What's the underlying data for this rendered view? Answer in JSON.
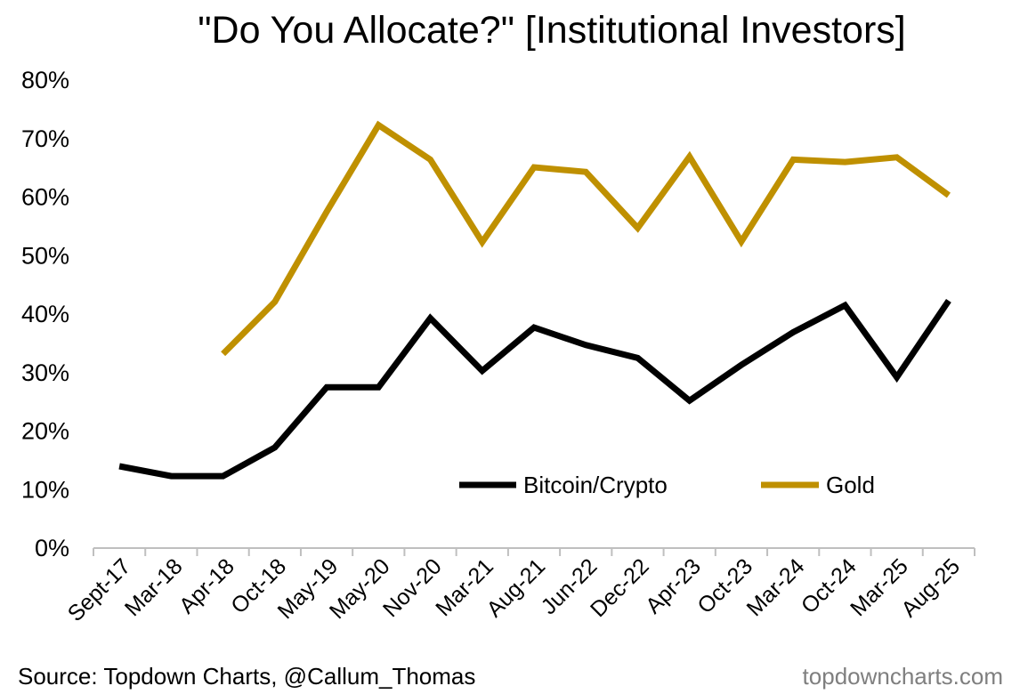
{
  "chart_data": {
    "type": "line",
    "title": "\"Do You Allocate?\" [Institutional Investors]",
    "categories": [
      "Sept-17",
      "Mar-18",
      "Apr-18",
      "Oct-18",
      "May-19",
      "May-20",
      "Nov-20",
      "Mar-21",
      "Aug-21",
      "Jun-22",
      "Dec-22",
      "Apr-23",
      "Oct-23",
      "Mar-24",
      "Oct-24",
      "Mar-25",
      "Aug-25"
    ],
    "series": [
      {
        "name": "Bitcoin/Crypto",
        "color": "#000000",
        "values": [
          14,
          12.3,
          12.3,
          17.2,
          27.5,
          27.5,
          39.3,
          30.3,
          37.7,
          34.7,
          32.5,
          25.2,
          31.3,
          36.9,
          41.5,
          29.2,
          42.3
        ]
      },
      {
        "name": "Gold",
        "color": "#bf9000",
        "values": [
          null,
          null,
          33.2,
          42.1,
          57.5,
          72.3,
          66.4,
          52.3,
          65.1,
          64.3,
          54.7,
          66.9,
          52.4,
          66.4,
          66,
          66.8,
          60.3
        ]
      }
    ],
    "y_tick_labels": [
      "0%",
      "10%",
      "20%",
      "30%",
      "40%",
      "50%",
      "60%",
      "70%",
      "80%"
    ],
    "ylim": [
      0,
      80
    ],
    "ystep": 10,
    "grid": false,
    "legend": "inside-bottom-right"
  },
  "source_note": "Source: Topdown Charts, @Callum_Thomas",
  "watermark": "topdowncharts.com"
}
